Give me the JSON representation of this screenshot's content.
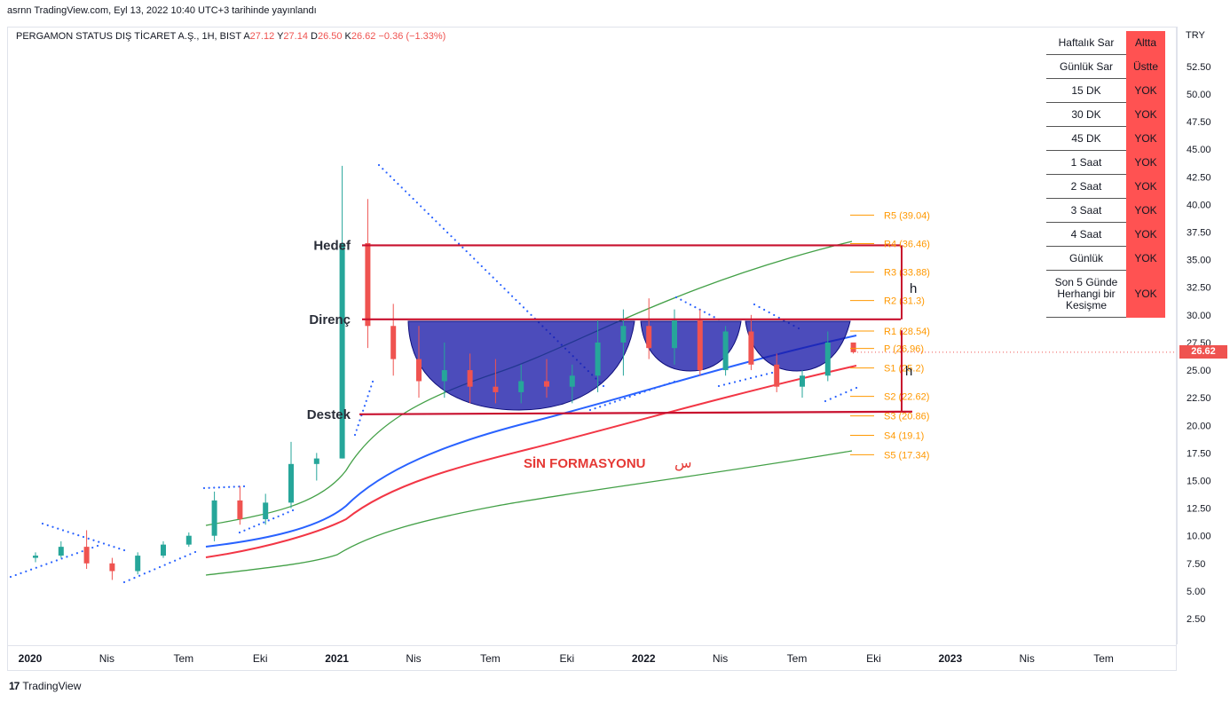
{
  "header": {
    "published": "asrnn TradingView.com, Eyl 13, 2022 10:40 UTC+3 tarihinde yayınlandı",
    "symbol": "PERGAMON STATUS DIŞ TİCARET A.Ş., 1H, BIST",
    "open_label": "A",
    "open": "27.12",
    "high_label": "Y",
    "high": "27.14",
    "low_label": "D",
    "low": "26.50",
    "close_label": "K",
    "close": "26.62",
    "change": "−0.36 (−1.33%)"
  },
  "price_axis": {
    "currency": "TRY",
    "last_price": "26.62"
  },
  "signal_table": {
    "rows": [
      {
        "label": "Haftalık Sar",
        "value": "Altta"
      },
      {
        "label": "Günlük Sar",
        "value": "Üstte"
      },
      {
        "label": "15 DK",
        "value": "YOK"
      },
      {
        "label": "30 DK",
        "value": "YOK"
      },
      {
        "label": "45 DK",
        "value": "YOK"
      },
      {
        "label": "1 Saat",
        "value": "YOK"
      },
      {
        "label": "2 Saat",
        "value": "YOK"
      },
      {
        "label": "3 Saat",
        "value": "YOK"
      },
      {
        "label": "4 Saat",
        "value": "YOK"
      },
      {
        "label": "Günlük",
        "value": "YOK"
      },
      {
        "label": "Son 5 Günde Herhangi bir Kesişme",
        "value": "YOK"
      }
    ],
    "value_color": "#ff5252"
  },
  "footer": {
    "logo_mark": "17",
    "brand": "TradingView"
  },
  "chart_data": {
    "type": "candlestick",
    "ylim": [
      0,
      55
    ],
    "y_ticks": [
      "52.50",
      "50.00",
      "47.50",
      "45.00",
      "42.50",
      "40.00",
      "37.50",
      "35.00",
      "32.50",
      "30.00",
      "27.50",
      "25.00",
      "22.50",
      "20.00",
      "17.50",
      "15.00",
      "12.50",
      "10.00",
      "7.50",
      "5.00",
      "2.50"
    ],
    "y_tick_values": [
      52.5,
      50,
      47.5,
      45,
      42.5,
      40,
      37.5,
      35,
      32.5,
      30,
      27.5,
      25,
      22.5,
      20,
      17.5,
      15,
      12.5,
      10,
      7.5,
      5,
      2.5
    ],
    "x_ticks": [
      "2020",
      "Nis",
      "Tem",
      "Eki",
      "2021",
      "Nis",
      "Tem",
      "Eki",
      "2022",
      "Nis",
      "Tem",
      "Eki",
      "2023",
      "Nis",
      "Tem"
    ],
    "x_tick_dates": [
      "2020-01",
      "2020-04",
      "2020-07",
      "2020-10",
      "2021-01",
      "2021-04",
      "2021-07",
      "2021-10",
      "2022-01",
      "2022-04",
      "2022-07",
      "2022-10",
      "2023-01",
      "2023-04",
      "2023-07"
    ],
    "bold_ticks": [
      "2020",
      "2021",
      "2022",
      "2023"
    ],
    "candles_weekly_approx": [
      [
        "2020-01",
        8.0,
        8.5,
        7.6,
        8.2
      ],
      [
        "2020-02",
        8.2,
        9.5,
        8.0,
        9.0
      ],
      [
        "2020-03",
        9.0,
        10.5,
        7.0,
        7.5
      ],
      [
        "2020-04",
        7.5,
        8.0,
        6.0,
        6.8
      ],
      [
        "2020-05",
        6.8,
        8.5,
        6.5,
        8.2
      ],
      [
        "2020-06",
        8.2,
        9.5,
        8.0,
        9.2
      ],
      [
        "2020-07",
        9.2,
        10.3,
        9.0,
        10.0
      ],
      [
        "2020-08",
        10.0,
        14.0,
        9.5,
        13.2
      ],
      [
        "2020-09",
        13.2,
        14.5,
        11.0,
        11.5
      ],
      [
        "2020-10",
        11.5,
        13.8,
        11.0,
        13.0
      ],
      [
        "2020-11",
        13.0,
        18.5,
        12.5,
        16.5
      ],
      [
        "2020-12",
        16.5,
        17.5,
        15.0,
        17.0
      ],
      [
        "2021-01",
        17.0,
        43.5,
        17.0,
        36.5
      ],
      [
        "2021-02",
        36.5,
        40.5,
        27.0,
        29.0
      ],
      [
        "2021-03",
        29.0,
        31.0,
        24.5,
        26.0
      ],
      [
        "2021-04",
        26.0,
        29.0,
        22.5,
        24.0
      ],
      [
        "2021-05",
        24.0,
        27.5,
        22.5,
        25.0
      ],
      [
        "2021-06",
        25.0,
        26.5,
        22.0,
        23.5
      ],
      [
        "2021-07",
        23.5,
        26.0,
        22.0,
        23.0
      ],
      [
        "2021-08",
        23.0,
        25.5,
        22.0,
        24.0
      ],
      [
        "2021-09",
        24.0,
        26.0,
        22.5,
        23.5
      ],
      [
        "2021-10",
        23.5,
        25.5,
        22.0,
        24.5
      ],
      [
        "2021-11",
        24.5,
        29.5,
        23.0,
        27.5
      ],
      [
        "2021-12",
        27.5,
        30.5,
        24.5,
        29.0
      ],
      [
        "2022-01",
        29.0,
        31.5,
        26.0,
        27.0
      ],
      [
        "2022-02",
        27.0,
        30.5,
        25.5,
        29.5
      ],
      [
        "2022-03",
        29.5,
        30.5,
        24.5,
        25.0
      ],
      [
        "2022-04",
        25.0,
        29.0,
        24.5,
        28.5
      ],
      [
        "2022-05",
        28.5,
        30.0,
        25.0,
        25.5
      ],
      [
        "2022-06",
        25.5,
        26.5,
        23.0,
        23.5
      ],
      [
        "2022-07",
        23.5,
        25.0,
        22.5,
        24.5
      ],
      [
        "2022-08",
        24.5,
        28.5,
        24.0,
        27.5
      ],
      [
        "2022-09",
        27.5,
        27.5,
        26.5,
        26.62
      ]
    ],
    "pivot_levels": [
      {
        "name": "R5",
        "value": 39.04,
        "label": "R5 (39.04)"
      },
      {
        "name": "R4",
        "value": 36.46,
        "label": "R4 (36.46)"
      },
      {
        "name": "R3",
        "value": 33.88,
        "label": "R3 (33.88)"
      },
      {
        "name": "R2",
        "value": 31.3,
        "label": "R2 (31.3)"
      },
      {
        "name": "R1",
        "value": 28.54,
        "label": "R1 (28.54)"
      },
      {
        "name": "P",
        "value": 26.96,
        "label": "P (26.96)"
      },
      {
        "name": "S1",
        "value": 25.2,
        "label": "S1 (25.2)"
      },
      {
        "name": "S2",
        "value": 22.62,
        "label": "S2 (22.62)"
      },
      {
        "name": "S3",
        "value": 20.86,
        "label": "S3 (20.86)"
      },
      {
        "name": "S4",
        "value": 19.1,
        "label": "S4 (19.1)"
      },
      {
        "name": "S5",
        "value": 17.34,
        "label": "S5 (17.34)"
      }
    ],
    "horizontal_lines": [
      {
        "label": "Hedef",
        "value": 36.3
      },
      {
        "label": "Direnç",
        "value": 29.6
      },
      {
        "label": "Destek",
        "value": 21.0
      }
    ],
    "pattern_label": "SİN FORMASYONU",
    "pattern_symbol": "س",
    "measure_label": "h",
    "colors": {
      "up": "#26a69a",
      "down": "#ef5350",
      "lines": "#c8102e",
      "pivot": "#ff9800",
      "ema_blue": "#2962ff",
      "ema_red": "#f23645",
      "ema_green": "#43a047",
      "sar": "#2962ff",
      "cup": "#1a1aa8"
    }
  }
}
